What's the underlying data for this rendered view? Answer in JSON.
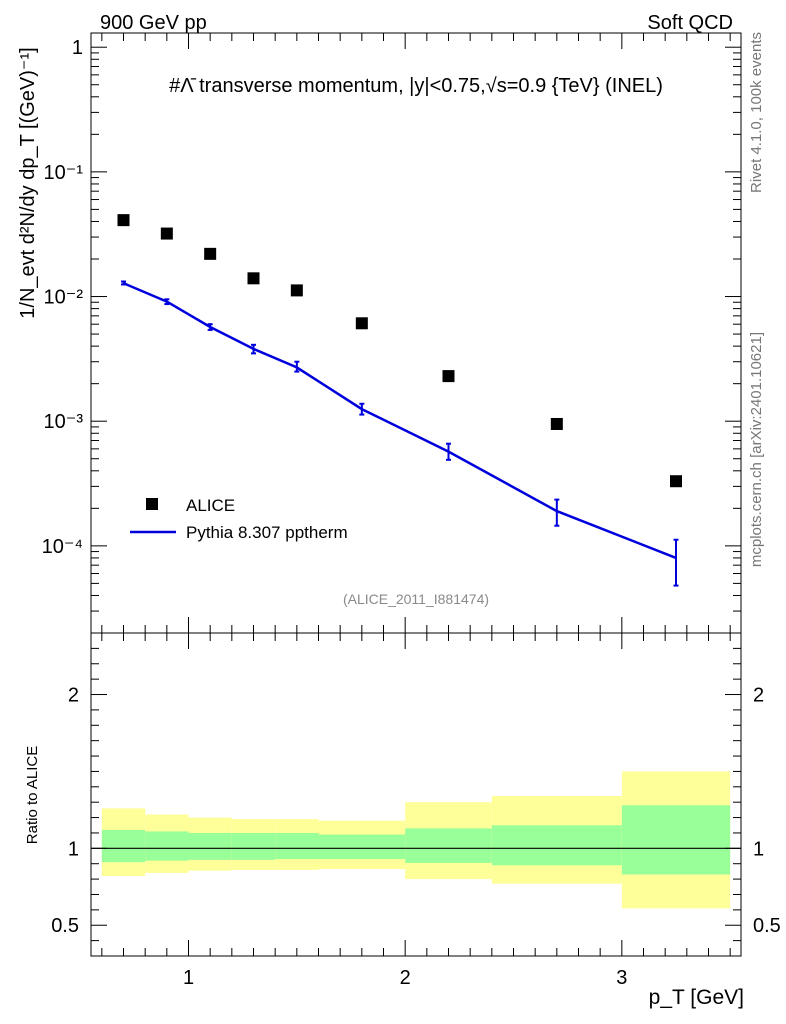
{
  "header": {
    "left": "900 GeV pp",
    "right": "Soft QCD"
  },
  "side_labels": {
    "rivet": "Rivet 4.1.0,  100k events",
    "mcplots": "mcplots.cern.ch [arXiv:2401.10621]"
  },
  "chart_data": {
    "type": "scatter",
    "title": "#Λ̄ transverse momentum, |y|<0.75,√s=0.9 {TeV} (INEL)",
    "analysis_id": "(ALICE_2011_I881474)",
    "xlabel": "p_T [GeV]",
    "ylabel": "1/N_evt d²N/dy dp_T [(GeV)⁻¹]",
    "xlim": [
      0.55,
      3.55
    ],
    "ylim": [
      2e-05,
      1.3
    ],
    "yscale": "log",
    "x_ticks": [
      "1",
      "2",
      "3"
    ],
    "y_ticks": [
      "1",
      "10⁻¹",
      "10⁻²",
      "10⁻³",
      "10⁻⁴"
    ],
    "legend": {
      "position": "bottom-left",
      "entries": [
        "ALICE",
        "Pythia 8.307 pptherm"
      ]
    },
    "series": [
      {
        "name": "ALICE",
        "style": "markers",
        "color": "#000000",
        "x": [
          0.7,
          0.9,
          1.1,
          1.3,
          1.5,
          1.8,
          2.2,
          2.7,
          3.25
        ],
        "y": [
          0.041,
          0.032,
          0.022,
          0.014,
          0.0112,
          0.0061,
          0.0023,
          0.00095,
          0.00033
        ]
      },
      {
        "name": "Pythia 8.307 pptherm",
        "style": "line",
        "color": "#0000dd",
        "x": [
          0.7,
          0.9,
          1.1,
          1.3,
          1.5,
          1.8,
          2.2,
          2.7,
          3.25
        ],
        "y": [
          0.0128,
          0.0091,
          0.0057,
          0.0038,
          0.0027,
          0.00125,
          0.00057,
          0.00019,
          8e-05
        ],
        "err_low": [
          0.0125,
          0.0087,
          0.0054,
          0.0035,
          0.0025,
          0.00113,
          0.00049,
          0.000145,
          4.8e-05
        ],
        "err_high": [
          0.0132,
          0.0095,
          0.006,
          0.0041,
          0.003,
          0.00138,
          0.00066,
          0.000235,
          0.000112
        ]
      }
    ],
    "ratio": {
      "ylabel": "Ratio to ALICE",
      "ylim": [
        0.3,
        2.4
      ],
      "y_ticks": [
        "0.5",
        "1",
        "2"
      ],
      "reference": 1,
      "bands": [
        {
          "x0": 0.6,
          "x1": 0.8,
          "inner": [
            0.91,
            1.12
          ],
          "outer": [
            0.82,
            1.26
          ]
        },
        {
          "x0": 0.8,
          "x1": 1.0,
          "inner": [
            0.92,
            1.11
          ],
          "outer": [
            0.84,
            1.22
          ]
        },
        {
          "x0": 1.0,
          "x1": 1.2,
          "inner": [
            0.925,
            1.1
          ],
          "outer": [
            0.855,
            1.2
          ]
        },
        {
          "x0": 1.2,
          "x1": 1.4,
          "inner": [
            0.925,
            1.1
          ],
          "outer": [
            0.86,
            1.19
          ]
        },
        {
          "x0": 1.4,
          "x1": 1.6,
          "inner": [
            0.93,
            1.1
          ],
          "outer": [
            0.86,
            1.19
          ]
        },
        {
          "x0": 1.6,
          "x1": 2.0,
          "inner": [
            0.93,
            1.09
          ],
          "outer": [
            0.865,
            1.18
          ]
        },
        {
          "x0": 2.0,
          "x1": 2.4,
          "inner": [
            0.905,
            1.13
          ],
          "outer": [
            0.8,
            1.3
          ]
        },
        {
          "x0": 2.4,
          "x1": 3.0,
          "inner": [
            0.89,
            1.15
          ],
          "outer": [
            0.77,
            1.34
          ]
        },
        {
          "x0": 3.0,
          "x1": 3.5,
          "inner": [
            0.83,
            1.28
          ],
          "outer": [
            0.61,
            1.5
          ]
        }
      ]
    }
  }
}
